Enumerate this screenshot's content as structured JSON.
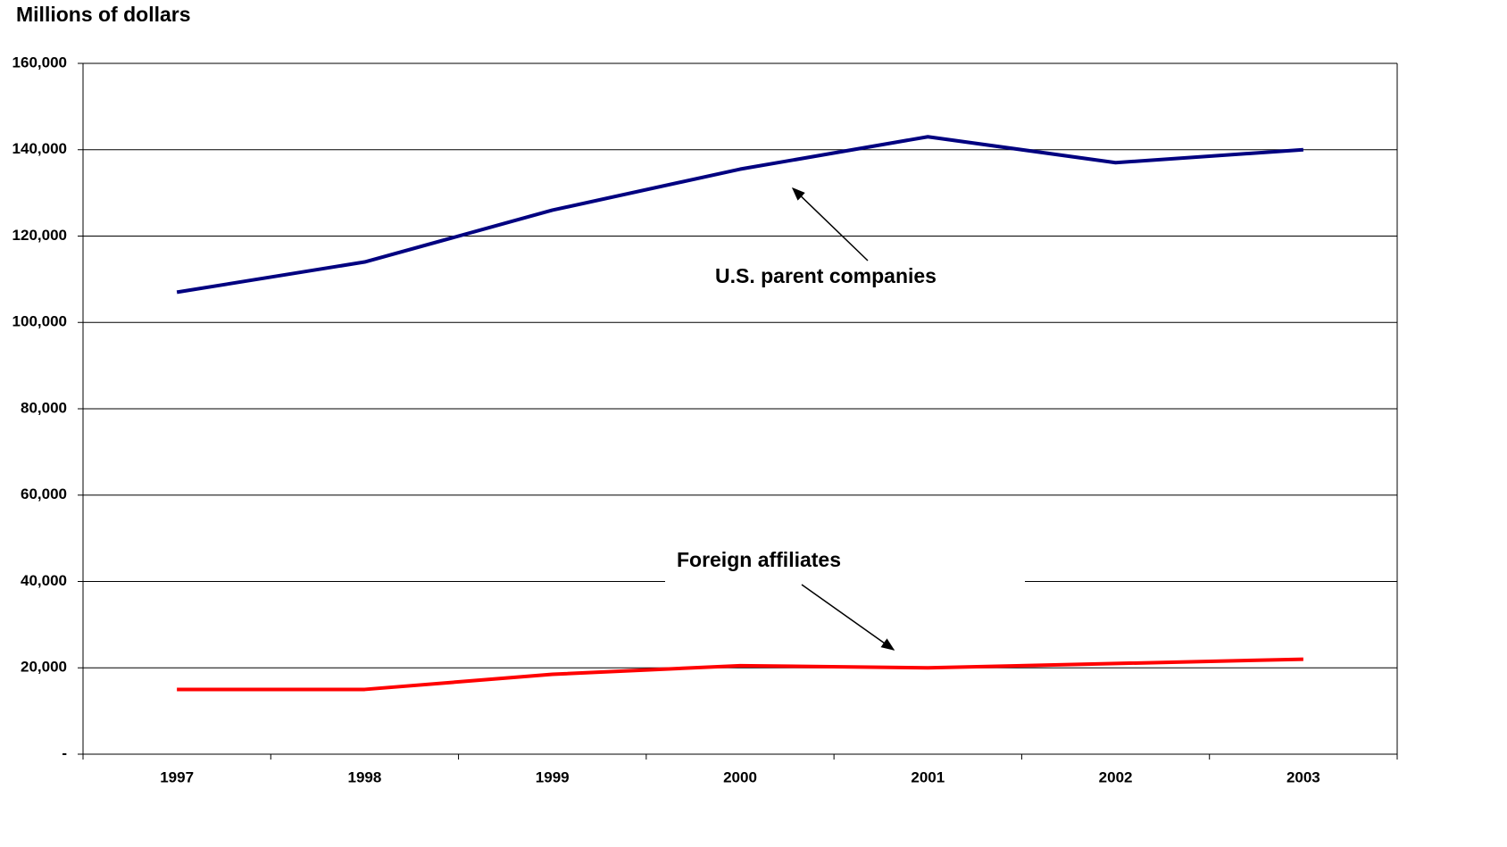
{
  "chart_data": {
    "type": "line",
    "y_axis_label": "Millions of dollars",
    "categories": [
      "1997",
      "1998",
      "1999",
      "2000",
      "2001",
      "2002",
      "2003"
    ],
    "series": [
      {
        "name": "U.S. parent companies",
        "color": "#000080",
        "values": [
          107000,
          114000,
          126000,
          135500,
          143000,
          137000,
          140000
        ]
      },
      {
        "name": "Foreign affiliates",
        "color": "#ff0000",
        "values": [
          15000,
          15000,
          18500,
          20500,
          20000,
          21000,
          22000
        ]
      }
    ],
    "ylim": [
      0,
      160000
    ],
    "yticks": [
      {
        "value": 0,
        "label": "-"
      },
      {
        "value": 20000,
        "label": "20,000"
      },
      {
        "value": 40000,
        "label": "40,000"
      },
      {
        "value": 60000,
        "label": "60,000"
      },
      {
        "value": 80000,
        "label": "80,000"
      },
      {
        "value": 100000,
        "label": "100,000"
      },
      {
        "value": 120000,
        "label": "120,000"
      },
      {
        "value": 140000,
        "label": "140,000"
      },
      {
        "value": 160000,
        "label": "160,000"
      }
    ],
    "grid": true
  }
}
